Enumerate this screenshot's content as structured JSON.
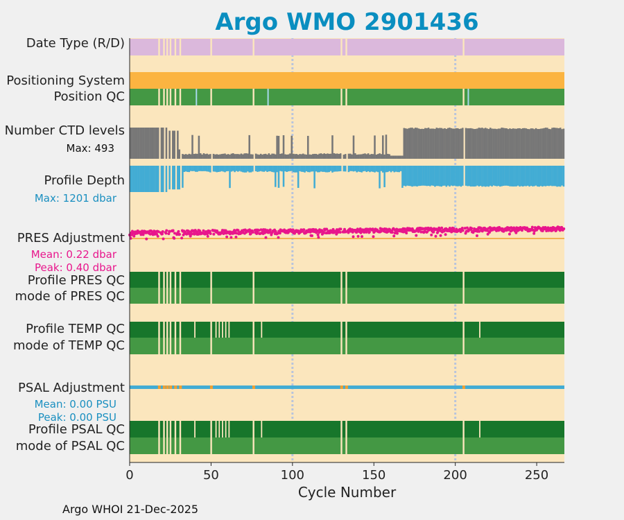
{
  "chart_data": {
    "type": "bar",
    "title": "Argo WMO 2901436",
    "xlabel": "Cycle Number",
    "xlim": [
      0,
      267
    ],
    "xticks": [
      0,
      50,
      100,
      150,
      200,
      250
    ],
    "gridlines_x": [
      100,
      200
    ],
    "footer": "Argo WHOI 21-Dec-2025",
    "missing_cycles": [
      18,
      21,
      23,
      25,
      28,
      31,
      50,
      76,
      130,
      133,
      205
    ],
    "rows": [
      {
        "id": "date_type",
        "label": "Date Type (R/D)",
        "color": "#dbb8dc"
      },
      {
        "id": "positioning_system",
        "label": "Positioning System",
        "color": "#fbb441"
      },
      {
        "id": "position_qc",
        "label": "Position QC",
        "color": "#449844",
        "bad_cycles": [
          41,
          85,
          208
        ]
      },
      {
        "id": "ctd_levels",
        "label": "Number CTD levels",
        "note": "Max: 493",
        "max": 493,
        "color": "#777777"
      },
      {
        "id": "profile_depth",
        "label": "Profile Depth",
        "note": "Max: 1201 dbar",
        "max": 1201,
        "units": "dbar",
        "color": "#42acd4"
      },
      {
        "id": "pres_adjustment",
        "label": "PRES Adjustment",
        "notes": [
          "Mean: 0.22 dbar",
          "Peak: 0.40 dbar"
        ],
        "mean": 0.22,
        "peak": 0.4,
        "color": "#e8168c"
      },
      {
        "id": "profile_pres_qc",
        "label": "Profile PRES QC",
        "color": "#17762b"
      },
      {
        "id": "mode_pres_qc",
        "label": "mode of PRES QC",
        "color": "#449844"
      },
      {
        "id": "profile_temp_qc",
        "label": "Profile TEMP QC",
        "color": "#17762b"
      },
      {
        "id": "mode_temp_qc",
        "label": "mode of TEMP QC",
        "color": "#449844"
      },
      {
        "id": "psal_adjustment",
        "label": "PSAL Adjustment",
        "notes": [
          "Mean: 0.00 PSU",
          "Peak: 0.00 PSU"
        ],
        "mean": 0.0,
        "peak": 0.0,
        "color": "#42acd4"
      },
      {
        "id": "profile_psal_qc",
        "label": "Profile PSAL QC",
        "color": "#17762b"
      },
      {
        "id": "mode_psal_qc",
        "label": "mode of PSAL QC",
        "color": "#449844"
      }
    ]
  },
  "colors": {
    "title": "#0a8ec0",
    "plot_bg": "#fbe6bd",
    "grid": "#b8c4dc",
    "pres_note": "#e8168c",
    "psal_note": "#1a8fc0",
    "ctd_note": "#111111",
    "depth_note": "#1a8fc0"
  }
}
